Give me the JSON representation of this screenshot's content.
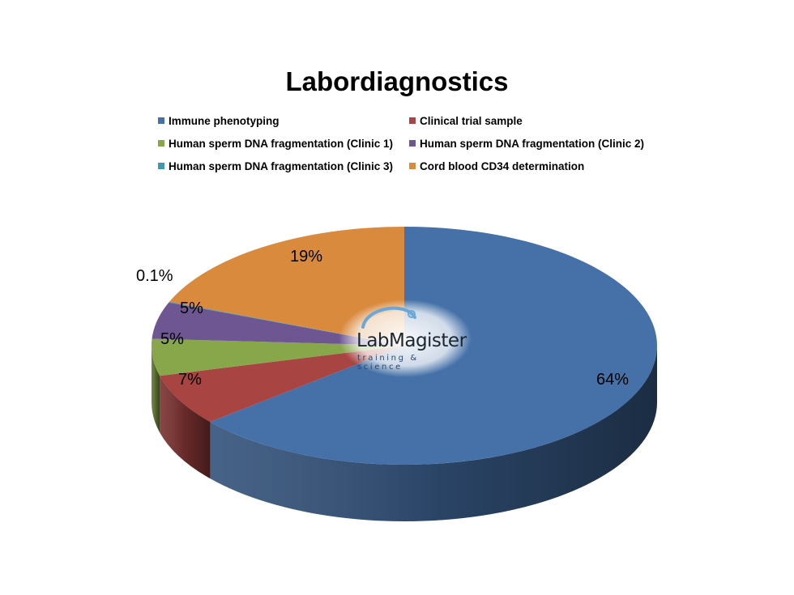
{
  "chart_data": {
    "type": "pie",
    "title": "Labordiagnostics",
    "legend_position": "top",
    "three_d": true,
    "series": [
      {
        "name": "Immune phenotyping",
        "value": 64,
        "label": "64%",
        "color": "#4571a8"
      },
      {
        "name": "Clinical trial sample",
        "value": 7,
        "label": "7%",
        "color": "#a84442"
      },
      {
        "name": "Human sperm DNA fragmentation (Clinic 1)",
        "value": 5,
        "label": "5%",
        "color": "#88a64a"
      },
      {
        "name": "Human sperm DNA fragmentation (Clinic 2)",
        "value": 5,
        "label": "5%",
        "color": "#6e5692"
      },
      {
        "name": "Human sperm DNA fragmentation (Clinic 3)",
        "value": 0.1,
        "label": "0.1%",
        "color": "#3f9ab1"
      },
      {
        "name": "Cord blood CD34 determination",
        "value": 19,
        "label": "19%",
        "color": "#d98a3d"
      }
    ]
  },
  "watermark": {
    "word": "LabMagister",
    "tagline": "training & science"
  }
}
